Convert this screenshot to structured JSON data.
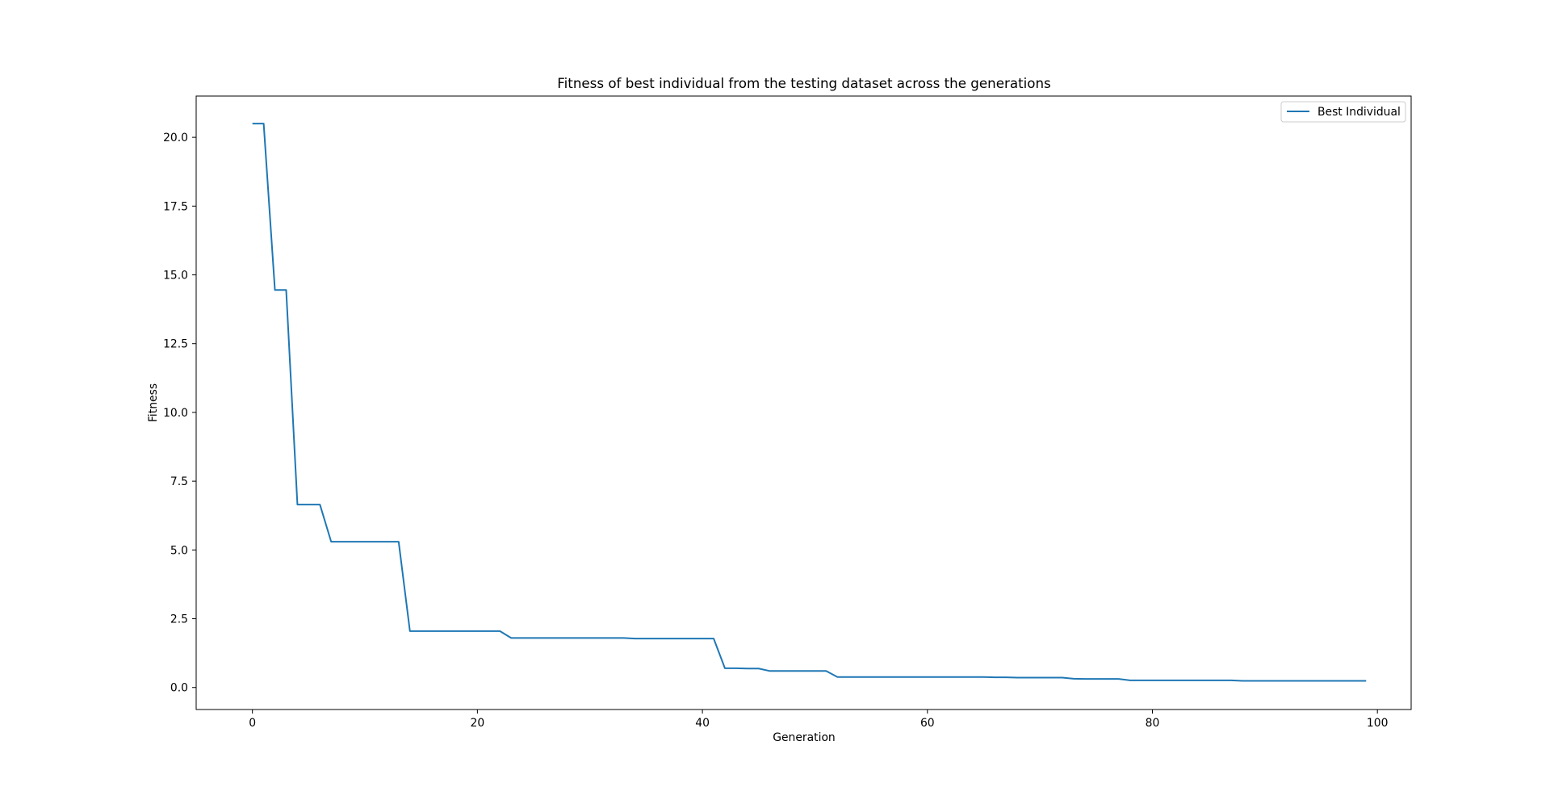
{
  "chart_data": {
    "type": "line",
    "title": "Fitness of best individual from the testing dataset across the generations",
    "xlabel": "Generation",
    "ylabel": "Fitness",
    "xlim": [
      -5,
      103
    ],
    "ylim": [
      -0.8,
      21.5
    ],
    "xticks": [
      0,
      20,
      40,
      60,
      80,
      100
    ],
    "xtick_labels": [
      "0",
      "20",
      "40",
      "60",
      "80",
      "100"
    ],
    "yticks": [
      0.0,
      2.5,
      5.0,
      7.5,
      10.0,
      12.5,
      15.0,
      17.5,
      20.0
    ],
    "ytick_labels": [
      "0.0",
      "2.5",
      "5.0",
      "7.5",
      "10.0",
      "12.5",
      "15.0",
      "17.5",
      "20.0"
    ],
    "grid": false,
    "legend_position": "top-right",
    "colors": {
      "line": "#1f77b4",
      "axes": "#000000",
      "legend_border": "#cccccc"
    },
    "series": [
      {
        "name": "Best Individual",
        "x": [
          0,
          1,
          2,
          3,
          4,
          5,
          6,
          7,
          8,
          9,
          10,
          11,
          12,
          13,
          14,
          15,
          16,
          17,
          18,
          19,
          20,
          21,
          22,
          23,
          24,
          25,
          26,
          27,
          28,
          29,
          30,
          31,
          32,
          33,
          34,
          35,
          36,
          37,
          38,
          39,
          40,
          41,
          42,
          43,
          44,
          45,
          46,
          47,
          48,
          49,
          50,
          51,
          52,
          53,
          54,
          55,
          56,
          57,
          58,
          59,
          60,
          61,
          62,
          63,
          64,
          65,
          66,
          67,
          68,
          69,
          70,
          71,
          72,
          73,
          74,
          75,
          76,
          77,
          78,
          79,
          80,
          81,
          82,
          83,
          84,
          85,
          86,
          87,
          88,
          89,
          90,
          91,
          92,
          93,
          94,
          95,
          96,
          97,
          98,
          99
        ],
        "y": [
          20.5,
          20.5,
          14.45,
          14.45,
          6.65,
          6.65,
          6.65,
          5.3,
          5.3,
          5.3,
          5.3,
          5.3,
          5.3,
          5.3,
          2.05,
          2.05,
          2.05,
          2.05,
          2.05,
          2.05,
          2.05,
          2.05,
          2.05,
          1.8,
          1.8,
          1.8,
          1.8,
          1.8,
          1.8,
          1.8,
          1.8,
          1.8,
          1.8,
          1.8,
          1.78,
          1.78,
          1.78,
          1.78,
          1.78,
          1.78,
          1.78,
          1.78,
          0.7,
          0.7,
          0.69,
          0.69,
          0.6,
          0.6,
          0.6,
          0.6,
          0.6,
          0.6,
          0.38,
          0.38,
          0.38,
          0.38,
          0.38,
          0.38,
          0.38,
          0.38,
          0.38,
          0.38,
          0.38,
          0.38,
          0.38,
          0.38,
          0.37,
          0.37,
          0.36,
          0.36,
          0.36,
          0.36,
          0.36,
          0.32,
          0.31,
          0.31,
          0.31,
          0.31,
          0.26,
          0.26,
          0.26,
          0.26,
          0.26,
          0.26,
          0.26,
          0.26,
          0.26,
          0.26,
          0.24,
          0.24,
          0.24,
          0.24,
          0.24,
          0.24,
          0.24,
          0.24,
          0.24,
          0.24,
          0.24,
          0.24
        ]
      }
    ]
  }
}
